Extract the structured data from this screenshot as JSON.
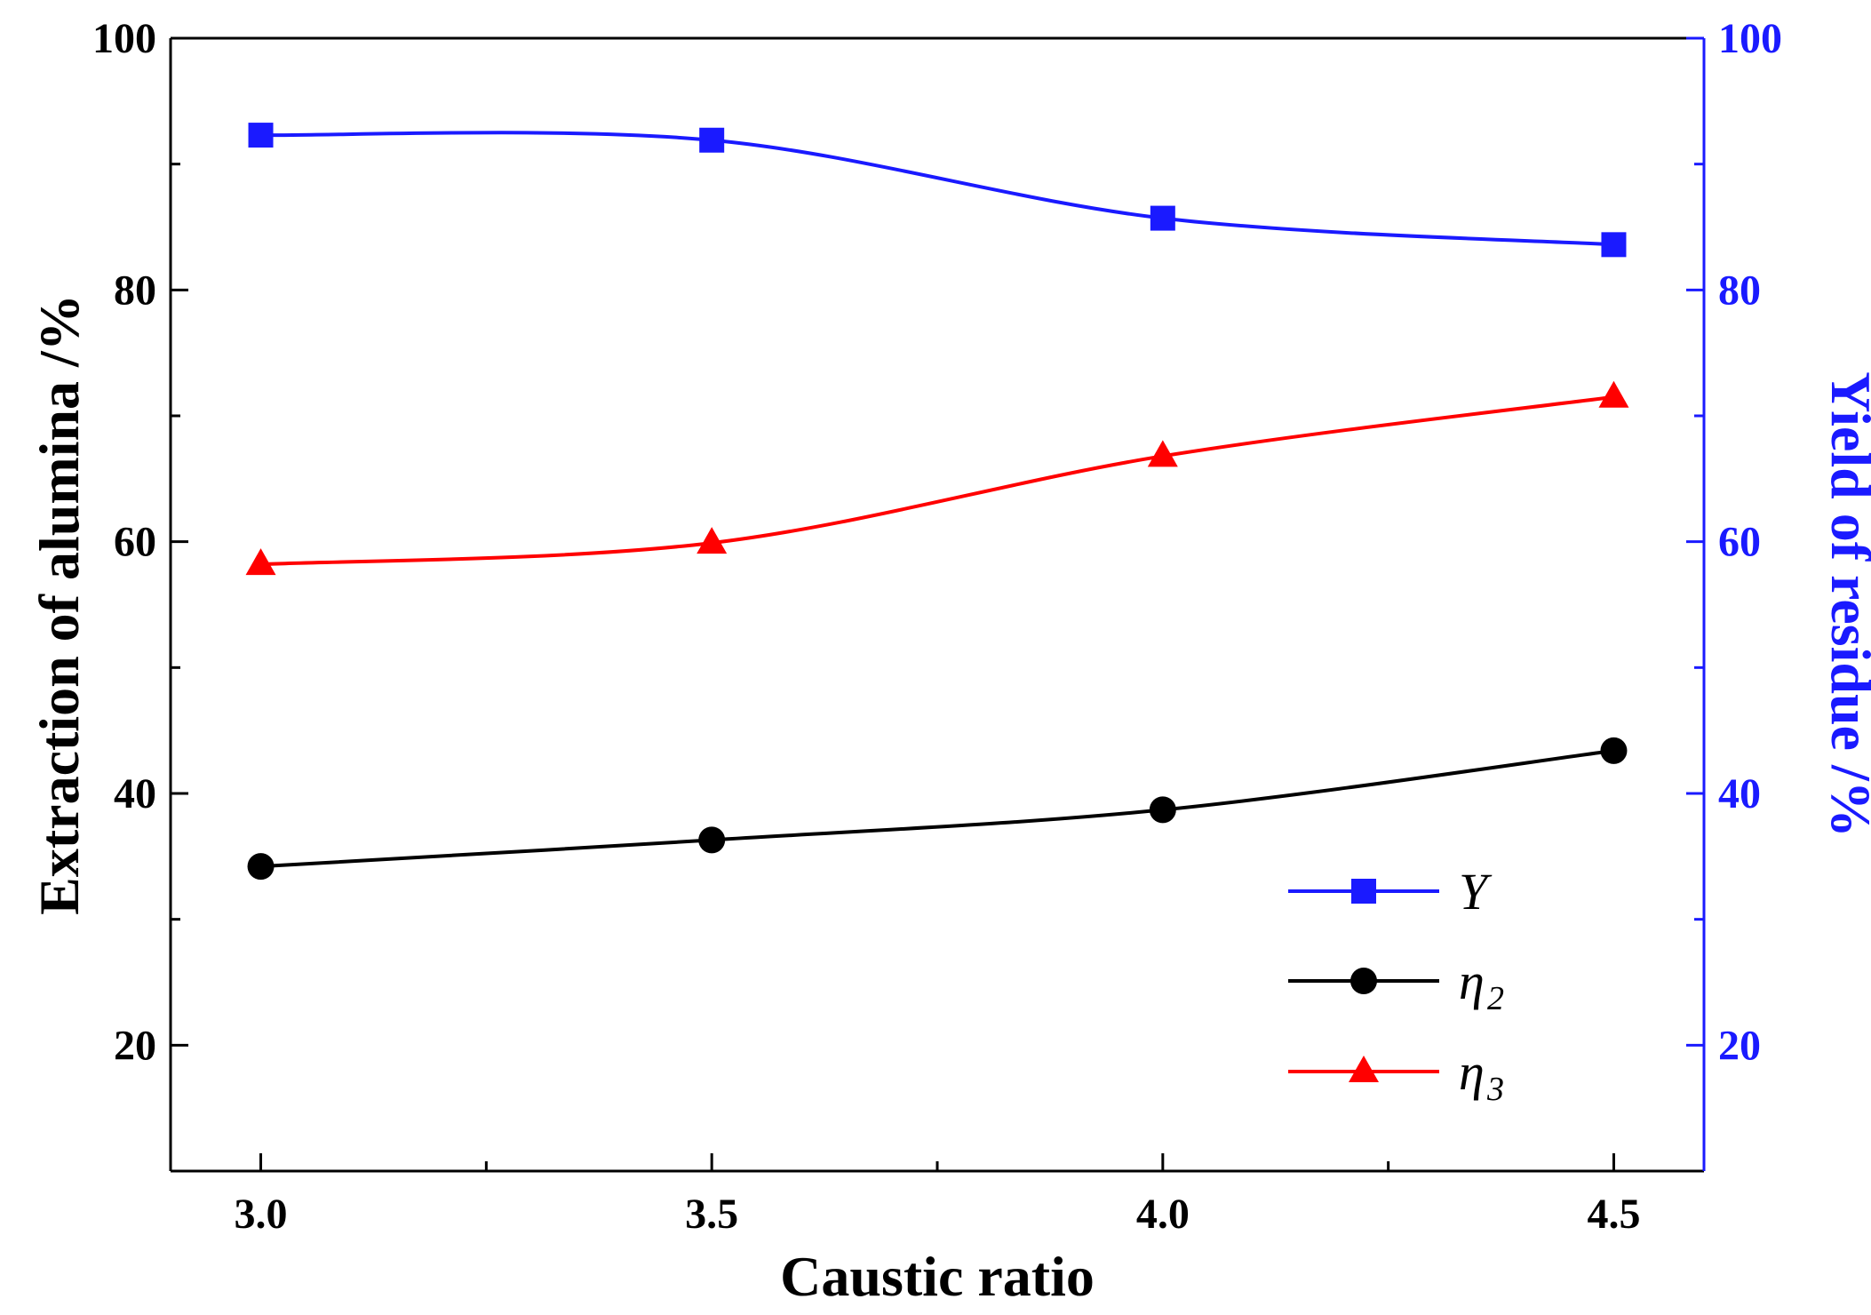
{
  "chart_data": {
    "type": "line",
    "title": "",
    "x": [
      3.0,
      3.5,
      4.0,
      4.5
    ],
    "xlabel": "Caustic ratio",
    "ylabel": "Extraction of alumina /%",
    "ylabel_right": "Yield of residue /%",
    "xlim": [
      2.9,
      4.6
    ],
    "ylim": [
      10,
      100
    ],
    "ylim_right": [
      10,
      100
    ],
    "x_ticks": [
      3.0,
      3.5,
      4.0,
      4.5
    ],
    "x_tick_labels": [
      "3.0",
      "3.5",
      "4.0",
      "4.5"
    ],
    "y_ticks": [
      20,
      40,
      60,
      80,
      100
    ],
    "y_tick_labels": [
      "20",
      "40",
      "60",
      "80",
      "100"
    ],
    "y_ticks_right": [
      20,
      40,
      60,
      80,
      100
    ],
    "y_tick_labels_right": [
      "20",
      "40",
      "60",
      "80",
      "100"
    ],
    "grid": false,
    "legend_position": "bottom-right",
    "series": [
      {
        "name": "Y",
        "subscript": "",
        "axis": "right",
        "marker": "square",
        "color": "#1a1aff",
        "values": [
          92.3,
          91.9,
          85.7,
          83.6
        ]
      },
      {
        "name": "η",
        "subscript": "2",
        "axis": "left",
        "marker": "circle",
        "color": "#000000",
        "values": [
          34.2,
          36.3,
          38.7,
          43.4
        ]
      },
      {
        "name": "η",
        "subscript": "3",
        "axis": "left",
        "marker": "triangle",
        "color": "#ff0000",
        "values": [
          58.2,
          59.9,
          66.8,
          71.5
        ]
      }
    ],
    "colors": {
      "axis_left": "#000000",
      "axis_right": "#1a1aff",
      "title_right": "#1a1aff"
    }
  }
}
